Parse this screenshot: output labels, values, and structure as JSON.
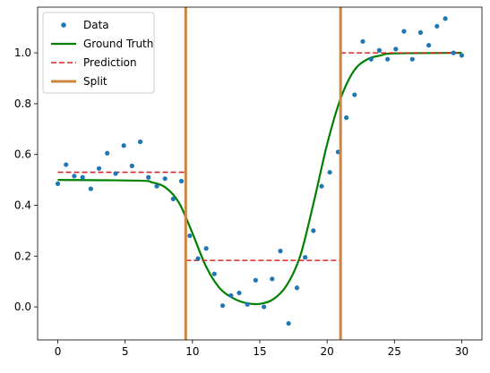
{
  "chart_data": {
    "type": "scatter",
    "title": "",
    "xlabel": "",
    "ylabel": "",
    "xlim": [
      -1.5,
      31.5
    ],
    "ylim": [
      -0.13,
      1.18
    ],
    "grid": false,
    "legend_placement": "top-left",
    "x_ticks": [
      0,
      5,
      10,
      15,
      20,
      25,
      30
    ],
    "y_ticks": [
      0.0,
      0.2,
      0.4,
      0.6,
      0.8,
      1.0
    ],
    "x_tick_labels": [
      "0",
      "5",
      "10",
      "15",
      "20",
      "25",
      "30"
    ],
    "y_tick_labels": [
      "0.0",
      "0.2",
      "0.4",
      "0.6",
      "0.8",
      "1.0"
    ],
    "legend": [
      {
        "label": "Data",
        "kind": "marker",
        "color": "#1f77b4"
      },
      {
        "label": "Ground Truth",
        "kind": "line",
        "color": "#008000"
      },
      {
        "label": "Prediction",
        "kind": "dashed",
        "color": "#d62728"
      },
      {
        "label": "Split",
        "kind": "thick",
        "color": "#cd853f"
      }
    ],
    "series": [
      {
        "name": "Data",
        "kind": "scatter",
        "color": "#1f77b4",
        "x": [
          0.0,
          0.61,
          1.22,
          1.84,
          2.45,
          3.06,
          3.67,
          4.29,
          4.9,
          5.51,
          6.12,
          6.73,
          7.35,
          7.96,
          8.57,
          9.18,
          9.8,
          10.41,
          11.02,
          11.63,
          12.24,
          12.86,
          13.47,
          14.08,
          14.69,
          15.31,
          15.92,
          16.53,
          17.14,
          17.76,
          18.37,
          18.98,
          19.59,
          20.2,
          20.82,
          21.43,
          22.04,
          22.65,
          23.27,
          23.88,
          24.49,
          25.1,
          25.71,
          26.33,
          26.94,
          27.55,
          28.16,
          28.78,
          29.39,
          30.0
        ],
        "y": [
          0.485,
          0.56,
          0.515,
          0.51,
          0.465,
          0.545,
          0.605,
          0.525,
          0.635,
          0.555,
          0.65,
          0.51,
          0.475,
          0.505,
          0.425,
          0.495,
          0.28,
          0.19,
          0.23,
          0.13,
          0.005,
          0.045,
          0.055,
          0.01,
          0.105,
          0.0,
          0.11,
          0.22,
          -0.065,
          0.075,
          0.195,
          0.3,
          0.475,
          0.53,
          0.61,
          0.745,
          0.835,
          1.045,
          0.975,
          1.01,
          0.975,
          1.015,
          1.085,
          0.975,
          1.08,
          1.03,
          1.105,
          1.135,
          1.0,
          0.99
        ]
      },
      {
        "name": "Ground Truth",
        "kind": "line",
        "color": "#008000",
        "x": [
          0,
          6,
          7,
          8,
          9,
          10,
          11,
          12,
          13,
          14,
          15,
          16,
          17,
          18,
          19,
          20,
          21,
          22,
          23,
          24,
          25,
          30
        ],
        "y": [
          0.5,
          0.497,
          0.49,
          0.47,
          0.41,
          0.29,
          0.16,
          0.075,
          0.035,
          0.015,
          0.012,
          0.03,
          0.085,
          0.2,
          0.41,
          0.64,
          0.82,
          0.93,
          0.975,
          0.99,
          0.998,
          1.0
        ]
      },
      {
        "name": "Prediction",
        "kind": "steps",
        "color": "#d62728",
        "segments": [
          {
            "x": [
              0,
              9.5
            ],
            "y": 0.53
          },
          {
            "x": [
              9.5,
              21.0
            ],
            "y": 0.183
          },
          {
            "x": [
              21.0,
              30.0
            ],
            "y": 1.0
          }
        ]
      },
      {
        "name": "Split",
        "kind": "vlines",
        "color": "#cd853f",
        "x": [
          9.5,
          21.0
        ]
      }
    ]
  }
}
